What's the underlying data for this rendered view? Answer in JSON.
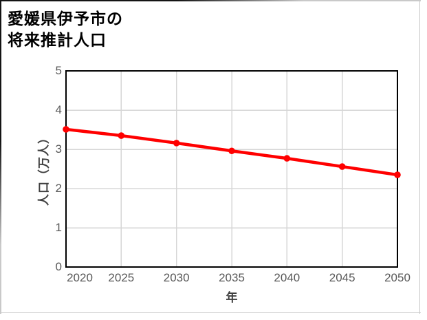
{
  "title": {
    "line1": "愛媛県伊予市の",
    "line2": "将来推計人口"
  },
  "chart_data": {
    "type": "line",
    "title": "愛媛県伊予市の将来推計人口",
    "x": [
      2020,
      2025,
      2030,
      2035,
      2040,
      2045,
      2050
    ],
    "x_labels": [
      "2020",
      "2025",
      "2030",
      "2035",
      "2040",
      "2045",
      "2050"
    ],
    "values": [
      3.51,
      3.35,
      3.16,
      2.96,
      2.77,
      2.56,
      2.35
    ],
    "xlabel": "年",
    "ylabel": "人口（万人）",
    "ylim": [
      0,
      5
    ],
    "yticks": [
      0,
      1,
      2,
      3,
      4,
      5
    ],
    "grid": true,
    "legend": "none",
    "line_color": "#ff0000",
    "marker": "circle",
    "gridline_color": "#d6d6d6",
    "axis_border_color": "#000000",
    "tick_label_color": "#595959"
  }
}
